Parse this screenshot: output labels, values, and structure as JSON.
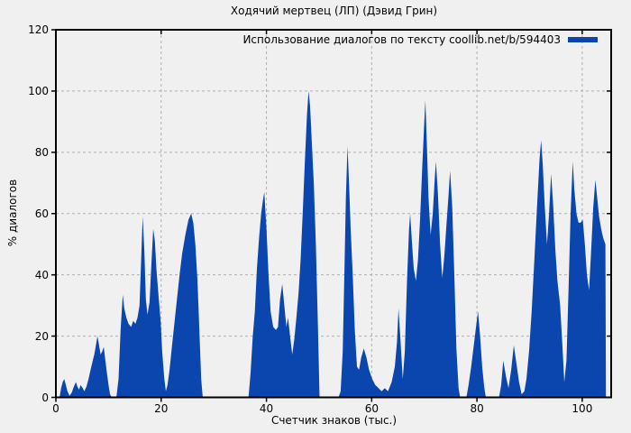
{
  "chart": {
    "background": "#f0f0f0"
  },
  "chart_data": {
    "type": "area",
    "title": "Ходячий мертвец (ЛП) (Дэвид Грин)",
    "xlabel": "Счетчик знаков (тыс.)",
    "ylabel": "% диалогов",
    "xlim": [
      0,
      105.5
    ],
    "ylim": [
      0,
      120
    ],
    "xticks": [
      0,
      20,
      40,
      60,
      80,
      100
    ],
    "yticks": [
      0,
      20,
      40,
      60,
      80,
      100,
      120
    ],
    "grid": true,
    "legend_position": "top-right-inside",
    "colors": {
      "background": "#f0f0f0",
      "grid": "#adadad",
      "axis": "#000000"
    },
    "series": [
      {
        "name": "Использование диалогов по тексту coollib.net/b/594403",
        "color": "#0a46ad",
        "points": [
          [
            0,
            0
          ],
          [
            0.7,
            0
          ],
          [
            1,
            3
          ],
          [
            1.3,
            5
          ],
          [
            1.6,
            6
          ],
          [
            1.9,
            4
          ],
          [
            2.2,
            2
          ],
          [
            2.6,
            0.5
          ],
          [
            3,
            1.5
          ],
          [
            3.4,
            3.5
          ],
          [
            3.8,
            5
          ],
          [
            4.1,
            3.5
          ],
          [
            4.4,
            2.5
          ],
          [
            4.7,
            4
          ],
          [
            5.1,
            3
          ],
          [
            5.4,
            2
          ],
          [
            5.8,
            3.5
          ],
          [
            6.2,
            6
          ],
          [
            6.6,
            9
          ],
          [
            7,
            12
          ],
          [
            7.3,
            14
          ],
          [
            7.6,
            17
          ],
          [
            7.9,
            20
          ],
          [
            8.2,
            17
          ],
          [
            8.5,
            14
          ],
          [
            8.8,
            15
          ],
          [
            9.1,
            16.5
          ],
          [
            9.4,
            12
          ],
          [
            9.7,
            8
          ],
          [
            10,
            4
          ],
          [
            10.3,
            1
          ],
          [
            10.6,
            0
          ],
          [
            11.5,
            0
          ],
          [
            11.9,
            6
          ],
          [
            12.3,
            22
          ],
          [
            12.7,
            33.5
          ],
          [
            13,
            29
          ],
          [
            13.4,
            26
          ],
          [
            13.8,
            24
          ],
          [
            14.3,
            23
          ],
          [
            14.7,
            25
          ],
          [
            15.1,
            24
          ],
          [
            15.5,
            26
          ],
          [
            15.9,
            30
          ],
          [
            16.2,
            45
          ],
          [
            16.5,
            59
          ],
          [
            16.8,
            48
          ],
          [
            17.1,
            32
          ],
          [
            17.4,
            27
          ],
          [
            17.8,
            31
          ],
          [
            18.1,
            42
          ],
          [
            18.5,
            55
          ],
          [
            18.8,
            51
          ],
          [
            19.1,
            42
          ],
          [
            19.5,
            33
          ],
          [
            19.9,
            25
          ],
          [
            20.2,
            15
          ],
          [
            20.6,
            6
          ],
          [
            20.9,
            2
          ],
          [
            21.2,
            4
          ],
          [
            21.6,
            9
          ],
          [
            22,
            16
          ],
          [
            22.5,
            24
          ],
          [
            23,
            32
          ],
          [
            23.5,
            40
          ],
          [
            24,
            47
          ],
          [
            24.6,
            53
          ],
          [
            25.2,
            58
          ],
          [
            25.7,
            60
          ],
          [
            26.1,
            57
          ],
          [
            26.5,
            50
          ],
          [
            26.9,
            38
          ],
          [
            27.3,
            20
          ],
          [
            27.6,
            6
          ],
          [
            27.9,
            0
          ],
          [
            36.6,
            0
          ],
          [
            37,
            8
          ],
          [
            37.4,
            20
          ],
          [
            37.8,
            28
          ],
          [
            38.2,
            42
          ],
          [
            38.6,
            52
          ],
          [
            39,
            60
          ],
          [
            39.3,
            64
          ],
          [
            39.6,
            67
          ],
          [
            40,
            55
          ],
          [
            40.4,
            40
          ],
          [
            40.8,
            28
          ],
          [
            41.3,
            23
          ],
          [
            41.8,
            22
          ],
          [
            42.2,
            23
          ],
          [
            42.6,
            32
          ],
          [
            43,
            37
          ],
          [
            43.4,
            30
          ],
          [
            43.8,
            23
          ],
          [
            44.1,
            26
          ],
          [
            44.5,
            20
          ],
          [
            44.9,
            14
          ],
          [
            45.3,
            19
          ],
          [
            45.7,
            26
          ],
          [
            46.1,
            34
          ],
          [
            46.5,
            45
          ],
          [
            46.9,
            60
          ],
          [
            47.3,
            77
          ],
          [
            47.7,
            92
          ],
          [
            48,
            100
          ],
          [
            48.3,
            95
          ],
          [
            48.6,
            84
          ],
          [
            49,
            70
          ],
          [
            49.4,
            50
          ],
          [
            49.8,
            22
          ],
          [
            50.1,
            0
          ],
          [
            53.7,
            0
          ],
          [
            54.1,
            2
          ],
          [
            54.5,
            15
          ],
          [
            54.8,
            40
          ],
          [
            55.1,
            65
          ],
          [
            55.4,
            82
          ],
          [
            55.7,
            70
          ],
          [
            56,
            55
          ],
          [
            56.4,
            40
          ],
          [
            56.8,
            22
          ],
          [
            57.2,
            10
          ],
          [
            57.6,
            9
          ],
          [
            58,
            13
          ],
          [
            58.5,
            16
          ],
          [
            59,
            13
          ],
          [
            59.5,
            9
          ],
          [
            60.1,
            6
          ],
          [
            60.7,
            4
          ],
          [
            61.3,
            3
          ],
          [
            61.9,
            2
          ],
          [
            62.5,
            3
          ],
          [
            63.1,
            2
          ],
          [
            63.8,
            5
          ],
          [
            64.4,
            10
          ],
          [
            64.8,
            18
          ],
          [
            65.1,
            29
          ],
          [
            65.5,
            18
          ],
          [
            65.9,
            6
          ],
          [
            66.3,
            15
          ],
          [
            66.7,
            38
          ],
          [
            67.1,
            55
          ],
          [
            67.3,
            60
          ],
          [
            67.6,
            52
          ],
          [
            68,
            42
          ],
          [
            68.4,
            38
          ],
          [
            68.8,
            45
          ],
          [
            69.2,
            58
          ],
          [
            69.6,
            75
          ],
          [
            70,
            90
          ],
          [
            70.2,
            97
          ],
          [
            70.5,
            82
          ],
          [
            70.8,
            65
          ],
          [
            71.2,
            53
          ],
          [
            71.6,
            60
          ],
          [
            72,
            72
          ],
          [
            72.2,
            77
          ],
          [
            72.6,
            66
          ],
          [
            73,
            50
          ],
          [
            73.4,
            39
          ],
          [
            73.8,
            46
          ],
          [
            74.2,
            56
          ],
          [
            74.6,
            66
          ],
          [
            74.9,
            74
          ],
          [
            75.3,
            62
          ],
          [
            75.7,
            40
          ],
          [
            76.1,
            16
          ],
          [
            76.5,
            3
          ],
          [
            76.8,
            0
          ],
          [
            78,
            0
          ],
          [
            78.4,
            4
          ],
          [
            78.9,
            10
          ],
          [
            79.4,
            17
          ],
          [
            79.9,
            24
          ],
          [
            80.2,
            28
          ],
          [
            80.6,
            20
          ],
          [
            81,
            10
          ],
          [
            81.4,
            3
          ],
          [
            81.7,
            0
          ],
          [
            84.2,
            0
          ],
          [
            84.6,
            4
          ],
          [
            85,
            12
          ],
          [
            85.5,
            7
          ],
          [
            86,
            3
          ],
          [
            86.5,
            9
          ],
          [
            87,
            17
          ],
          [
            87.5,
            11
          ],
          [
            88,
            5
          ],
          [
            88.5,
            1
          ],
          [
            89,
            2
          ],
          [
            89.4,
            6
          ],
          [
            89.9,
            15
          ],
          [
            90.4,
            28
          ],
          [
            90.9,
            45
          ],
          [
            91.4,
            62
          ],
          [
            91.9,
            78
          ],
          [
            92.2,
            84
          ],
          [
            92.5,
            76
          ],
          [
            92.9,
            62
          ],
          [
            93.3,
            50
          ],
          [
            93.7,
            60
          ],
          [
            94.1,
            73
          ],
          [
            94.5,
            62
          ],
          [
            94.9,
            48
          ],
          [
            95.3,
            38
          ],
          [
            95.8,
            30
          ],
          [
            96.2,
            18
          ],
          [
            96.6,
            5
          ],
          [
            97,
            12
          ],
          [
            97.4,
            35
          ],
          [
            97.8,
            60
          ],
          [
            98.2,
            77
          ],
          [
            98.5,
            68
          ],
          [
            98.9,
            60
          ],
          [
            99.3,
            57
          ],
          [
            99.7,
            57
          ],
          [
            100.1,
            58
          ],
          [
            100.5,
            50
          ],
          [
            100.9,
            40
          ],
          [
            101.3,
            35
          ],
          [
            101.7,
            48
          ],
          [
            102.1,
            62
          ],
          [
            102.5,
            71
          ],
          [
            102.8,
            66
          ],
          [
            103.2,
            59
          ],
          [
            103.6,
            55
          ],
          [
            104,
            52
          ],
          [
            104.4,
            50
          ],
          [
            104.5,
            0
          ]
        ]
      }
    ]
  }
}
